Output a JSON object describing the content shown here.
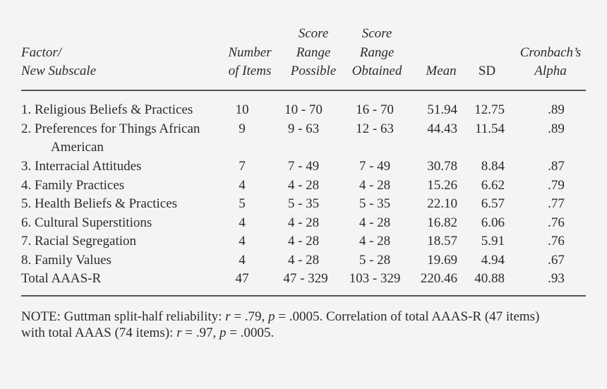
{
  "table": {
    "headers": {
      "factor": [
        "Factor/",
        "New Subscale"
      ],
      "items": [
        "Number",
        "of Items"
      ],
      "possible": [
        "Score",
        "Range",
        "Possible"
      ],
      "obtained": [
        "Score",
        "Range",
        "Obtained"
      ],
      "mean": "Mean",
      "sd": "SD",
      "alpha": [
        "Cronbach’s",
        "Alpha"
      ]
    },
    "rows": [
      {
        "label": "1. Religious Beliefs & Practices",
        "items": "10",
        "possible": "10 - 70",
        "obtained": "16 - 70",
        "mean": "51.94",
        "sd": "12.75",
        "alpha": ".89"
      },
      {
        "label": "2. Preferences for Things African",
        "label2": "American",
        "items": "9",
        "possible": "9 - 63",
        "obtained": "12 - 63",
        "mean": "44.43",
        "sd": "11.54",
        "alpha": ".89"
      },
      {
        "label": "3. Interracial Attitudes",
        "items": "7",
        "possible": "7 - 49",
        "obtained": "7 - 49",
        "mean": "30.78",
        "sd": "8.84",
        "alpha": ".87"
      },
      {
        "label": "4. Family Practices",
        "items": "4",
        "possible": "4 - 28",
        "obtained": "4 - 28",
        "mean": "15.26",
        "sd": "6.62",
        "alpha": ".79"
      },
      {
        "label": "5. Health Beliefs & Practices",
        "items": "5",
        "possible": "5 - 35",
        "obtained": "5 - 35",
        "mean": "22.10",
        "sd": "6.57",
        "alpha": ".77"
      },
      {
        "label": "6. Cultural Superstitions",
        "items": "4",
        "possible": "4 - 28",
        "obtained": "4 - 28",
        "mean": "16.82",
        "sd": "6.06",
        "alpha": ".76"
      },
      {
        "label": "7. Racial Segregation",
        "items": "4",
        "possible": "4 - 28",
        "obtained": "4 - 28",
        "mean": "18.57",
        "sd": "5.91",
        "alpha": ".76"
      },
      {
        "label": "8. Family Values",
        "items": "4",
        "possible": "4 - 28",
        "obtained": "5 - 28",
        "mean": "19.69",
        "sd": "4.94",
        "alpha": ".67"
      },
      {
        "label": "Total AAAS-R",
        "items": "47",
        "possible": "47 - 329",
        "obtained": "103 - 329",
        "mean": "220.46",
        "sd": "40.88",
        "alpha": ".93"
      }
    ]
  },
  "note": {
    "prefix": "NOTE: Guttman split-half reliability: ",
    "r1_sym": "r",
    "r1_val": " = .79, ",
    "p1_sym": "p",
    "p1_val": " = .0005. Correlation of total AAAS-R (47 items)",
    "line2_prefix": "with total AAAS (74 items): ",
    "r2_sym": "r",
    "r2_val": " = .97, ",
    "p2_sym": "p",
    "p2_val": " = .0005."
  }
}
